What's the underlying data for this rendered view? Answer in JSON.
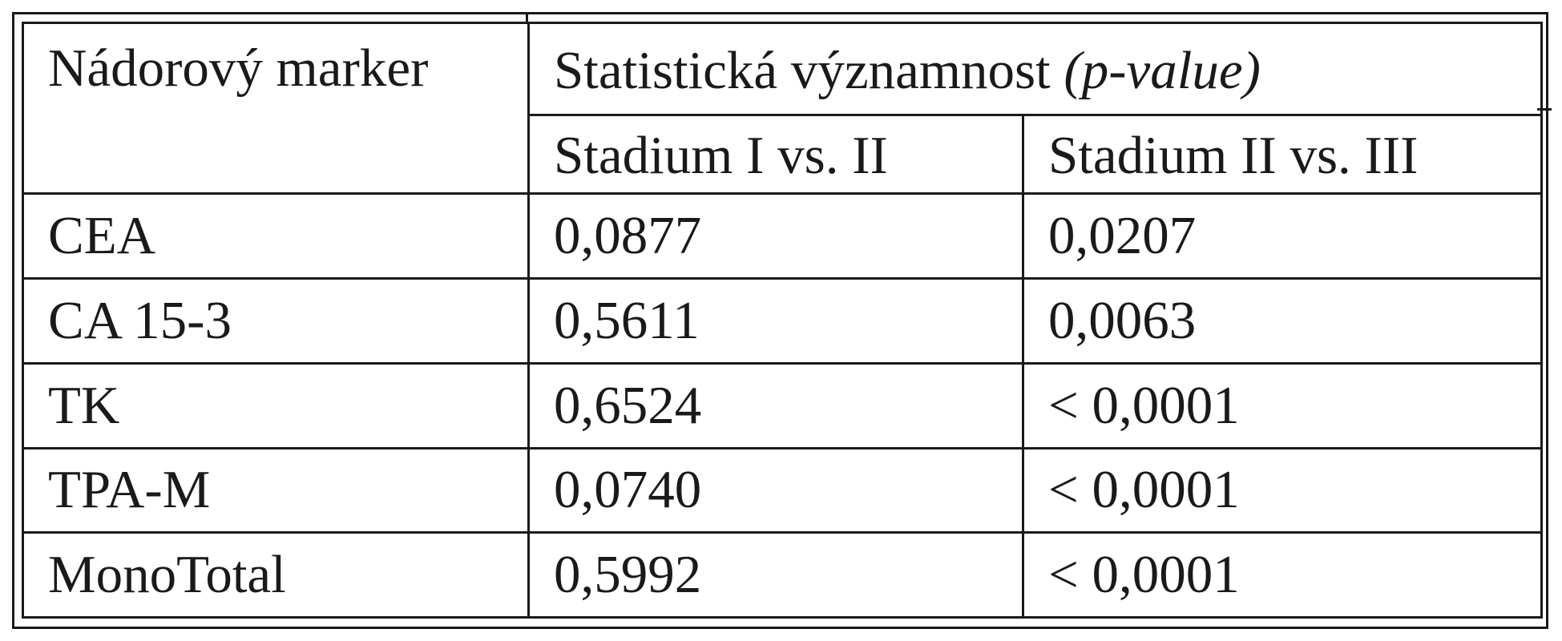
{
  "table": {
    "header": {
      "marker_label": "Nádorový marker",
      "significance_label": "Statistická významnost",
      "significance_italic": "(p-value)",
      "stage_columns": [
        "Stadium I vs. II",
        "Stadium II vs. III"
      ]
    },
    "rows": [
      {
        "marker": "CEA",
        "stage_1_vs_2": "0,0877",
        "stage_2_vs_3": "0,0207"
      },
      {
        "marker": "CA 15-3",
        "stage_1_vs_2": "0,5611",
        "stage_2_vs_3": "0,0063"
      },
      {
        "marker": "TK",
        "stage_1_vs_2": "0,6524",
        "stage_2_vs_3": "< 0,0001"
      },
      {
        "marker": "TPA-M",
        "stage_1_vs_2": "0,0740",
        "stage_2_vs_3": "< 0,0001"
      },
      {
        "marker": "MonoTotal",
        "stage_1_vs_2": "0,5992",
        "stage_2_vs_3": "< 0,0001"
      }
    ]
  }
}
